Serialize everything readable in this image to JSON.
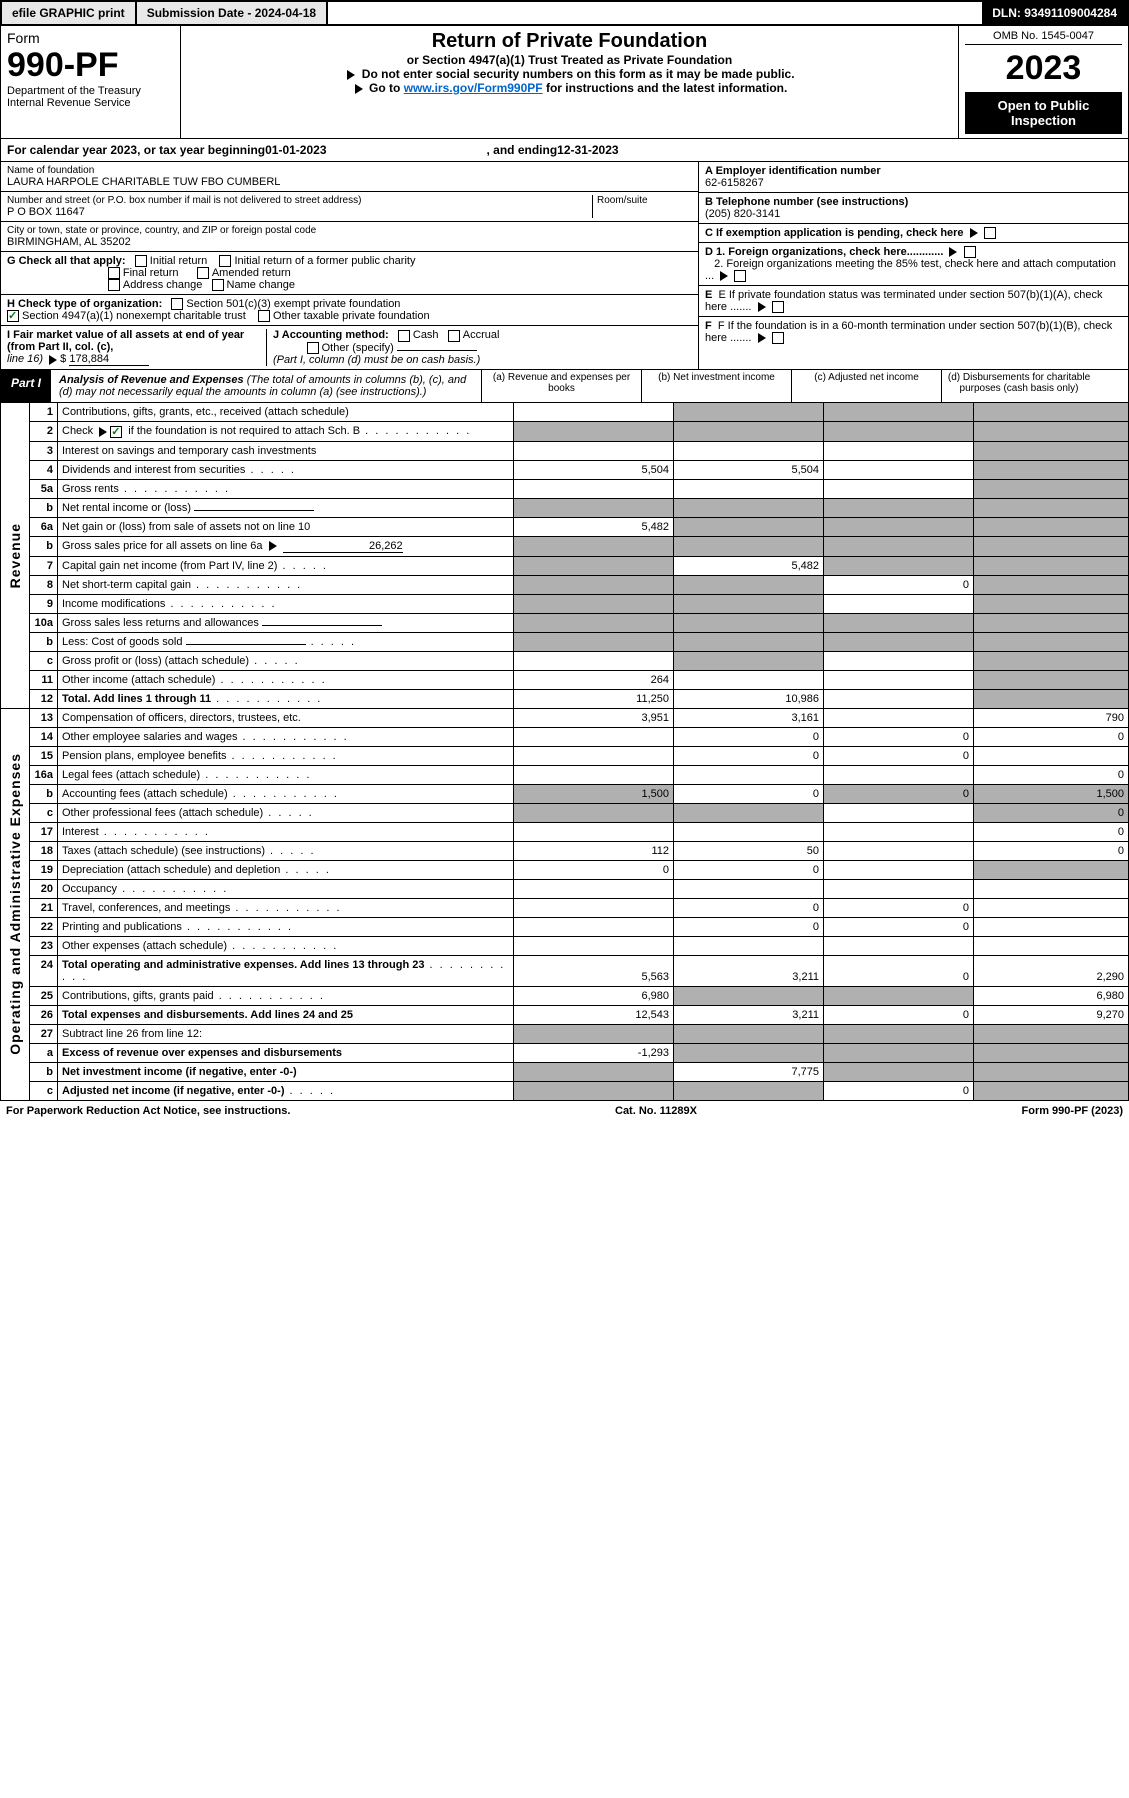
{
  "topbar": {
    "efile": "efile GRAPHIC print",
    "sub_label": "Submission Date - ",
    "sub_date": "2024-04-18",
    "dln_label": "DLN: ",
    "dln": "93491109004284"
  },
  "header": {
    "form_word": "Form",
    "form_no": "990-PF",
    "dept": "Department of the Treasury",
    "irs": "Internal Revenue Service",
    "title": "Return of Private Foundation",
    "subtitle": "or Section 4947(a)(1) Trust Treated as Private Foundation",
    "note1": "Do not enter social security numbers on this form as it may be made public.",
    "note2_pre": "Go to ",
    "note2_link": "www.irs.gov/Form990PF",
    "note2_post": " for instructions and the latest information.",
    "omb": "OMB No. 1545-0047",
    "year": "2023",
    "open": "Open to Public Inspection"
  },
  "calyear": {
    "pre": "For calendar year 2023, or tax year beginning ",
    "begin": "01-01-2023",
    "mid": ", and ending ",
    "end": "12-31-2023"
  },
  "ident": {
    "name_lbl": "Name of foundation",
    "name": "LAURA HARPOLE CHARITABLE TUW FBO CUMBERL",
    "addr_lbl": "Number and street (or P.O. box number if mail is not delivered to street address)",
    "addr": "P O BOX 11647",
    "room_lbl": "Room/suite",
    "city_lbl": "City or town, state or province, country, and ZIP or foreign postal code",
    "city": "BIRMINGHAM, AL  35202",
    "ein_lbl": "A Employer identification number",
    "ein": "62-6158267",
    "tel_lbl": "B Telephone number (see instructions)",
    "tel": "(205) 820-3141",
    "c": "C If exemption application is pending, check here",
    "d1": "D 1. Foreign organizations, check here............",
    "d2": "2. Foreign organizations meeting the 85% test, check here and attach computation ...",
    "e": "E  If private foundation status was terminated under section 507(b)(1)(A), check here .......",
    "f": "F  If the foundation is in a 60-month termination under section 507(b)(1)(B), check here .......",
    "g_lbl": "G Check all that apply:",
    "g_initial": "Initial return",
    "g_initial_pub": "Initial return of a former public charity",
    "g_final": "Final return",
    "g_amended": "Amended return",
    "g_addr": "Address change",
    "g_name": "Name change",
    "h_lbl": "H Check type of organization:",
    "h_501c3": "Section 501(c)(3) exempt private foundation",
    "h_4947": "Section 4947(a)(1) nonexempt charitable trust",
    "h_other": "Other taxable private foundation",
    "i_lbl": "I Fair market value of all assets at end of year (from Part II, col. (c),",
    "i_line": "line 16)",
    "i_val": "178,884",
    "j_lbl": "J Accounting method:",
    "j_cash": "Cash",
    "j_accrual": "Accrual",
    "j_other": "Other (specify)",
    "j_note": "(Part I, column (d) must be on cash basis.)"
  },
  "part1": {
    "lbl": "Part I",
    "title": "Analysis of Revenue and Expenses",
    "note": "(The total of amounts in columns (b), (c), and (d) may not necessarily equal the amounts in column (a) (see instructions).)",
    "cols": {
      "a": "(a)   Revenue and expenses per books",
      "b": "(b)   Net investment income",
      "c": "(c)   Adjusted net income",
      "d": "(d)  Disbursements for charitable purposes (cash basis only)"
    }
  },
  "sides": {
    "rev": "Revenue",
    "exp": "Operating and Administrative Expenses"
  },
  "rows": [
    {
      "ln": "1",
      "desc": "Contributions, gifts, grants, etc., received (attach schedule)"
    },
    {
      "ln": "2",
      "desc_pre": "Check",
      "desc_post": " if the foundation is not required to attach Sch. B",
      "chk": true,
      "dots": true
    },
    {
      "ln": "3",
      "desc": "Interest on savings and temporary cash investments"
    },
    {
      "ln": "4",
      "desc": "Dividends and interest from securities",
      "dots": "s",
      "a": "5,504",
      "b": "5,504"
    },
    {
      "ln": "5a",
      "desc": "Gross rents",
      "dots": true
    },
    {
      "ln": "b",
      "desc": "Net rental income or (loss)",
      "inline_underline": true
    },
    {
      "ln": "6a",
      "desc": "Net gain or (loss) from sale of assets not on line 10",
      "a": "5,482"
    },
    {
      "ln": "b",
      "desc_pre": "Gross sales price for all assets on line 6a",
      "inline_val": "26,262"
    },
    {
      "ln": "7",
      "desc": "Capital gain net income (from Part IV, line 2)",
      "dots": "s",
      "b": "5,482"
    },
    {
      "ln": "8",
      "desc": "Net short-term capital gain",
      "dots": true,
      "c": "0"
    },
    {
      "ln": "9",
      "desc": "Income modifications",
      "dots": true
    },
    {
      "ln": "10a",
      "desc": "Gross sales less returns and allowances",
      "inline_underline": true
    },
    {
      "ln": "b",
      "desc": "Less: Cost of goods sold",
      "dots": "s",
      "inline_underline": true
    },
    {
      "ln": "c",
      "desc": "Gross profit or (loss) (attach schedule)",
      "dots": "s"
    },
    {
      "ln": "11",
      "desc": "Other income (attach schedule)",
      "dots": true,
      "a": "264"
    },
    {
      "ln": "12",
      "desc": "Total. Add lines 1 through 11",
      "dots": true,
      "bold": true,
      "a": "11,250",
      "b": "10,986"
    },
    {
      "ln": "13",
      "desc": "Compensation of officers, directors, trustees, etc.",
      "a": "3,951",
      "b": "3,161",
      "d": "790"
    },
    {
      "ln": "14",
      "desc": "Other employee salaries and wages",
      "dots": true,
      "b": "0",
      "c": "0",
      "d": "0"
    },
    {
      "ln": "15",
      "desc": "Pension plans, employee benefits",
      "dots": true,
      "b": "0",
      "c": "0"
    },
    {
      "ln": "16a",
      "desc": "Legal fees (attach schedule)",
      "dots": true,
      "d": "0"
    },
    {
      "ln": "b",
      "desc": "Accounting fees (attach schedule)",
      "dots": true,
      "a": "1,500",
      "b": "0",
      "c": "0",
      "d": "1,500"
    },
    {
      "ln": "c",
      "desc": "Other professional fees (attach schedule)",
      "dots": "s",
      "d": "0"
    },
    {
      "ln": "17",
      "desc": "Interest",
      "dots": true,
      "d": "0"
    },
    {
      "ln": "18",
      "desc": "Taxes (attach schedule) (see instructions)",
      "dots": "s",
      "a": "112",
      "b": "50",
      "d": "0"
    },
    {
      "ln": "19",
      "desc": "Depreciation (attach schedule) and depletion",
      "dots": "s",
      "a": "0",
      "b": "0"
    },
    {
      "ln": "20",
      "desc": "Occupancy",
      "dots": true
    },
    {
      "ln": "21",
      "desc": "Travel, conferences, and meetings",
      "dots": true,
      "b": "0",
      "c": "0"
    },
    {
      "ln": "22",
      "desc": "Printing and publications",
      "dots": true,
      "b": "0",
      "c": "0"
    },
    {
      "ln": "23",
      "desc": "Other expenses (attach schedule)",
      "dots": true
    },
    {
      "ln": "24",
      "desc": "Total operating and administrative expenses. Add lines 13 through 23",
      "dots": true,
      "bold": true,
      "a": "5,563",
      "b": "3,211",
      "c": "0",
      "d": "2,290"
    },
    {
      "ln": "25",
      "desc": "Contributions, gifts, grants paid",
      "dots": true,
      "a": "6,980",
      "d": "6,980"
    },
    {
      "ln": "26",
      "desc": "Total expenses and disbursements. Add lines 24 and 25",
      "bold": true,
      "a": "12,543",
      "b": "3,211",
      "c": "0",
      "d": "9,270"
    },
    {
      "ln": "27",
      "desc": "Subtract line 26 from line 12:"
    },
    {
      "ln": "a",
      "desc": "Excess of revenue over expenses and disbursements",
      "bold": true,
      "a": "-1,293"
    },
    {
      "ln": "b",
      "desc": "Net investment income (if negative, enter -0-)",
      "bold": true,
      "b": "7,775"
    },
    {
      "ln": "c",
      "desc": "Adjusted net income (if negative, enter -0-)",
      "dots": "s",
      "bold": true,
      "c": "0"
    }
  ],
  "gray_map": {
    "1": [
      "b",
      "c",
      "d"
    ],
    "2": [
      "a",
      "b",
      "c",
      "d"
    ],
    "3": [
      "d"
    ],
    "4": [
      "d"
    ],
    "5a": [
      "d"
    ],
    "b_5": [
      "a",
      "b",
      "c",
      "d"
    ],
    "6a": [
      "b",
      "c",
      "d"
    ],
    "b_6": [
      "a",
      "b",
      "c",
      "d"
    ],
    "7": [
      "a",
      "c",
      "d"
    ],
    "8": [
      "a",
      "b",
      "d"
    ],
    "9": [
      "a",
      "b",
      "d"
    ],
    "10a": [
      "a",
      "b",
      "c",
      "d"
    ],
    "b_10": [
      "a",
      "b",
      "c",
      "d"
    ],
    "c_10": [
      "b",
      "d"
    ],
    "11": [
      "d"
    ],
    "12": [
      "d"
    ],
    "19": [
      "d"
    ],
    "25": [
      "b",
      "c"
    ],
    "27": [
      "a",
      "b",
      "c",
      "d"
    ],
    "a_27": [
      "b",
      "c",
      "d"
    ],
    "b_27": [
      "a",
      "c",
      "d"
    ],
    "c_27": [
      "a",
      "b",
      "d"
    ]
  },
  "footer": {
    "left": "For Paperwork Reduction Act Notice, see instructions.",
    "mid": "Cat. No. 11289X",
    "right": "Form 990-PF (2023)"
  }
}
